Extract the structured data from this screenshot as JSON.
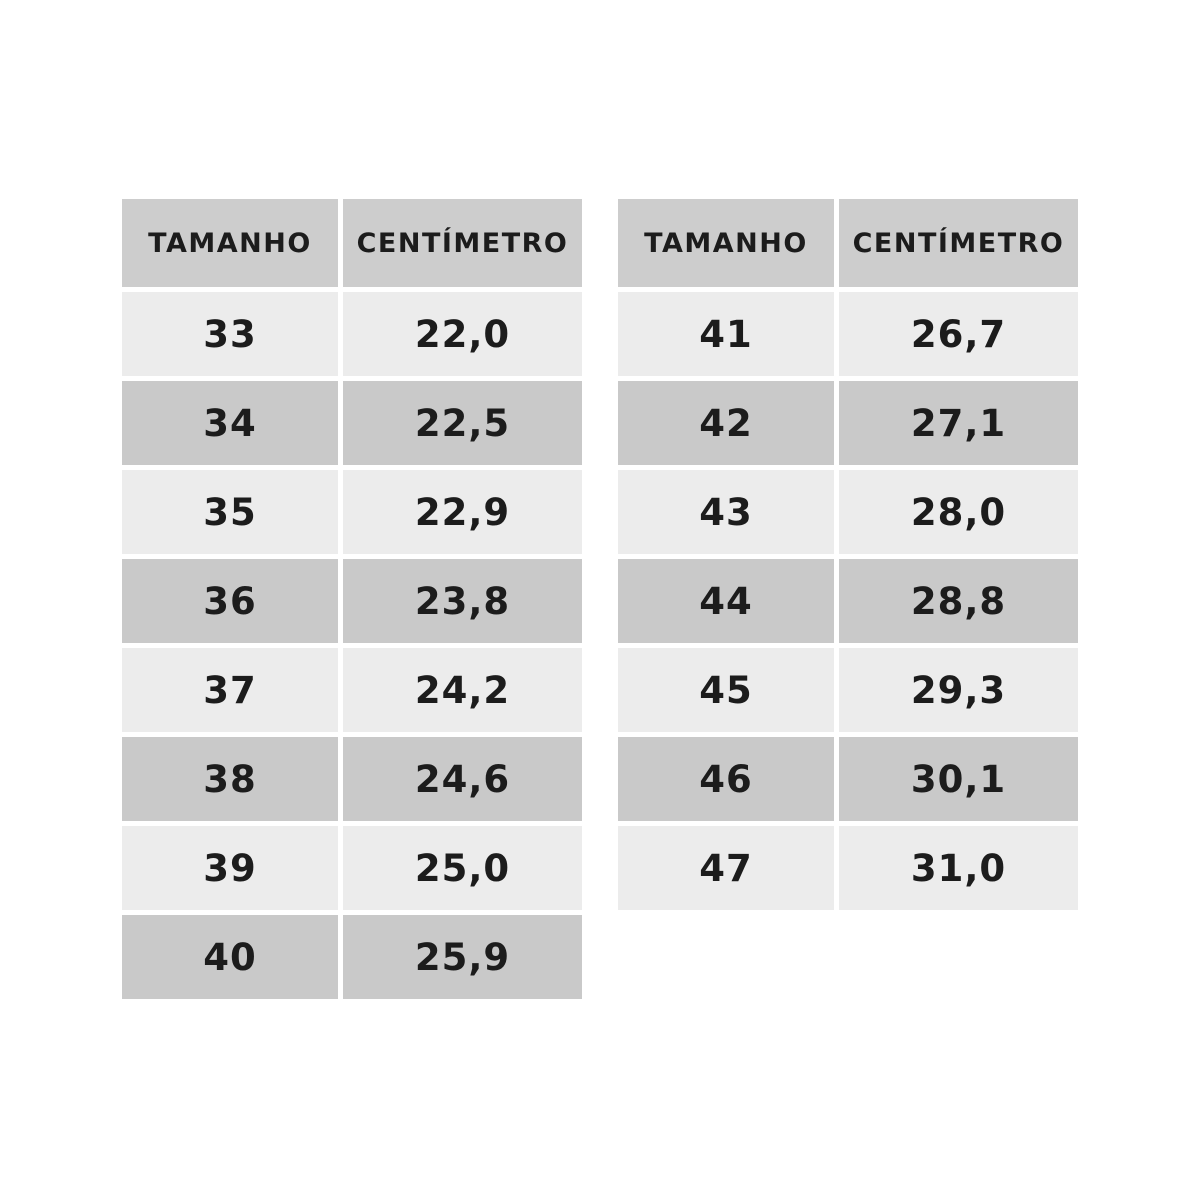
{
  "page": {
    "background": "#ffffff"
  },
  "table_style": {
    "header_bg": "#cdcdcd",
    "row_dark_bg": "#c9c9c9",
    "row_light_bg": "#ececec",
    "gridline_color": "#ffffff",
    "text_color": "#1c1c1c"
  },
  "tables": [
    {
      "id": "left",
      "headers": {
        "size": "TAMANHO",
        "cm": "CENTÍMETRO"
      },
      "rows": [
        {
          "size": "33",
          "cm": "22,0"
        },
        {
          "size": "34",
          "cm": "22,5"
        },
        {
          "size": "35",
          "cm": "22,9"
        },
        {
          "size": "36",
          "cm": "23,8"
        },
        {
          "size": "37",
          "cm": "24,2"
        },
        {
          "size": "38",
          "cm": "24,6"
        },
        {
          "size": "39",
          "cm": "25,0"
        },
        {
          "size": "40",
          "cm": "25,9"
        }
      ]
    },
    {
      "id": "right",
      "headers": {
        "size": "TAMANHO",
        "cm": "CENTÍMETRO"
      },
      "rows": [
        {
          "size": "41",
          "cm": "26,7"
        },
        {
          "size": "42",
          "cm": "27,1"
        },
        {
          "size": "43",
          "cm": "28,0"
        },
        {
          "size": "44",
          "cm": "28,8"
        },
        {
          "size": "45",
          "cm": "29,3"
        },
        {
          "size": "46",
          "cm": "30,1"
        },
        {
          "size": "47",
          "cm": "31,0"
        }
      ]
    }
  ]
}
